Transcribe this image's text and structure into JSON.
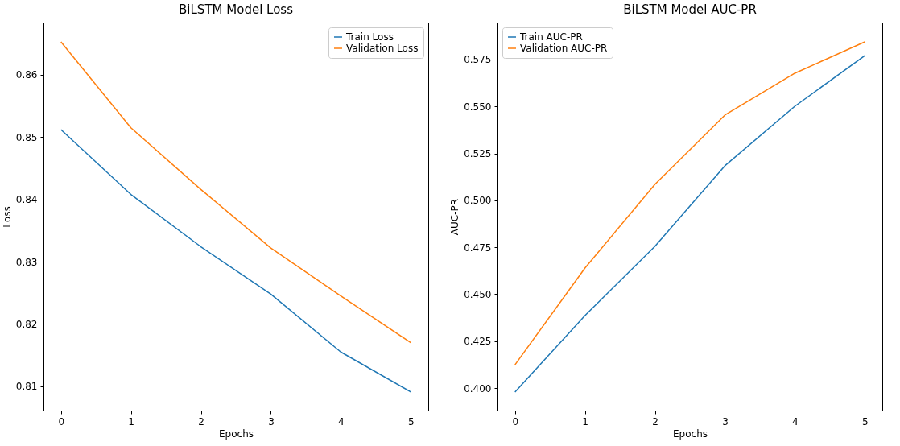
{
  "chart_data": [
    {
      "type": "line",
      "title": "BiLSTM Model Loss",
      "xlabel": "Epochs",
      "ylabel": "Loss",
      "x": [
        0,
        1,
        2,
        3,
        4,
        5
      ],
      "xlim": [
        -0.25,
        5.25
      ],
      "xticks": [
        0,
        1,
        2,
        3,
        4,
        5
      ],
      "ylim": [
        0.8061,
        0.8684
      ],
      "yticks": [
        0.81,
        0.82,
        0.83,
        0.84,
        0.85,
        0.86
      ],
      "grid": false,
      "legend": "top right",
      "series": [
        {
          "name": "Train Loss",
          "color": "#1f77b4",
          "values": [
            0.8512,
            0.8408,
            0.8324,
            0.8248,
            0.8155,
            0.8091
          ]
        },
        {
          "name": "Validation Loss",
          "color": "#ff7f0e",
          "values": [
            0.8653,
            0.8515,
            0.8416,
            0.8322,
            0.8245,
            0.817
          ]
        }
      ]
    },
    {
      "type": "line",
      "title": "BiLSTM Model AUC-PR",
      "xlabel": "Epochs",
      "ylabel": "AUC-PR",
      "x": [
        0,
        1,
        2,
        3,
        4,
        5
      ],
      "xlim": [
        -0.25,
        5.25
      ],
      "xticks": [
        0,
        1,
        2,
        3,
        4,
        5
      ],
      "ylim": [
        0.388,
        0.5947
      ],
      "yticks": [
        {
          "value": 0.4,
          "label": "0.400"
        },
        {
          "value": 0.425,
          "label": "0.425"
        },
        {
          "value": 0.45,
          "label": "0.450"
        },
        {
          "value": 0.475,
          "label": "0.475"
        },
        {
          "value": 0.5,
          "label": "0.500"
        },
        {
          "value": 0.525,
          "label": "0.525"
        },
        {
          "value": 0.55,
          "label": "0.550"
        },
        {
          "value": 0.575,
          "label": "0.575"
        }
      ],
      "grid": false,
      "legend": "top left",
      "series": [
        {
          "name": "Train AUC-PR",
          "color": "#1f77b4",
          "values": [
            0.3979,
            0.4386,
            0.4755,
            0.5184,
            0.5501,
            0.5771
          ]
        },
        {
          "name": "Validation AUC-PR",
          "color": "#ff7f0e",
          "values": [
            0.4124,
            0.4639,
            0.5085,
            0.5454,
            0.5677,
            0.5844
          ]
        }
      ]
    }
  ]
}
